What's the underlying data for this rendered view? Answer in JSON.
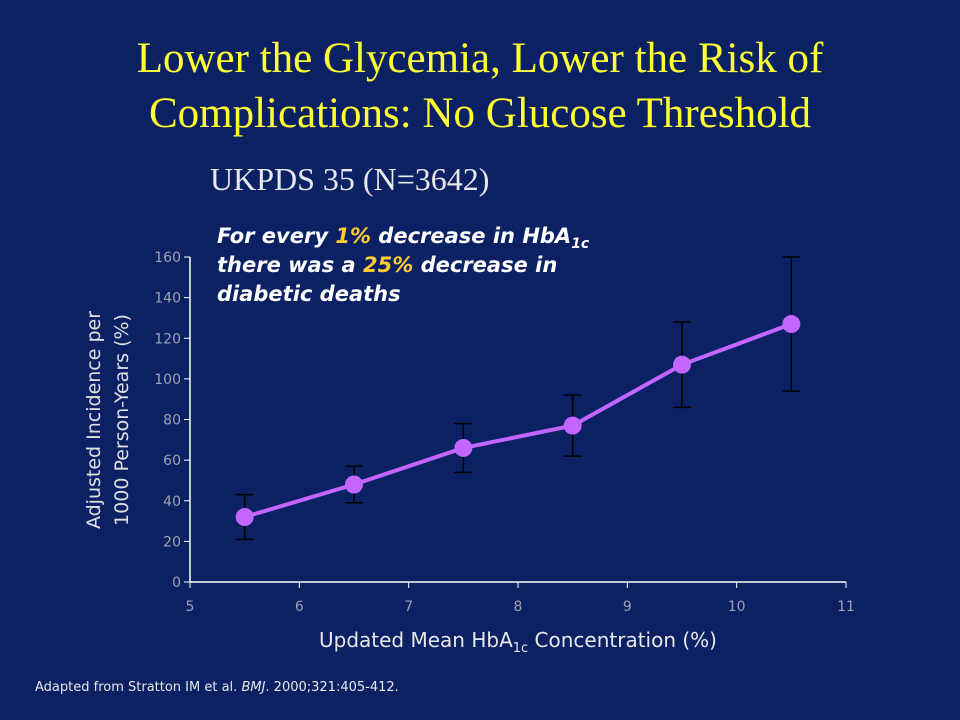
{
  "chart_data": {
    "type": "line",
    "title": [
      "Lower the Glycemia, Lower the Risk of",
      "Complications: No Glucose Threshold"
    ],
    "subtitle": "UKPDS 35 (N=3642)",
    "annotation": {
      "line1": [
        "For every ",
        "1%",
        " decrease in HbA",
        "1c"
      ],
      "line2": "there was a 25% decrease in",
      "line2_parts": [
        "there was a ",
        "25%",
        " decrease in"
      ],
      "line3": "diabetic deaths"
    },
    "x_label": [
      "Updated Mean HbA",
      "1c",
      " Concentration (%)"
    ],
    "y_label": [
      "Adjusted Incidence per",
      "1000 Person-Years (%)"
    ],
    "footnote": [
      "Adapted from Stratton IM et al. ",
      "BMJ",
      ". 2000;321:405-412."
    ],
    "x": [
      5.5,
      6.5,
      7.5,
      8.5,
      9.5,
      10.5
    ],
    "series": [
      {
        "name": "Diabetic deaths",
        "color": "#c266ff",
        "values": [
          32,
          48,
          66,
          77,
          107,
          127
        ],
        "errors": [
          11,
          9,
          12,
          15,
          21,
          33
        ]
      }
    ],
    "xlim": [
      5,
      11
    ],
    "xticks": [
      5,
      6,
      7,
      8,
      9,
      10,
      11
    ],
    "ylim": [
      0,
      160
    ],
    "yticks": [
      0,
      20,
      40,
      60,
      80,
      100,
      120,
      140,
      160
    ],
    "highlight_color": "#ffcc33"
  }
}
